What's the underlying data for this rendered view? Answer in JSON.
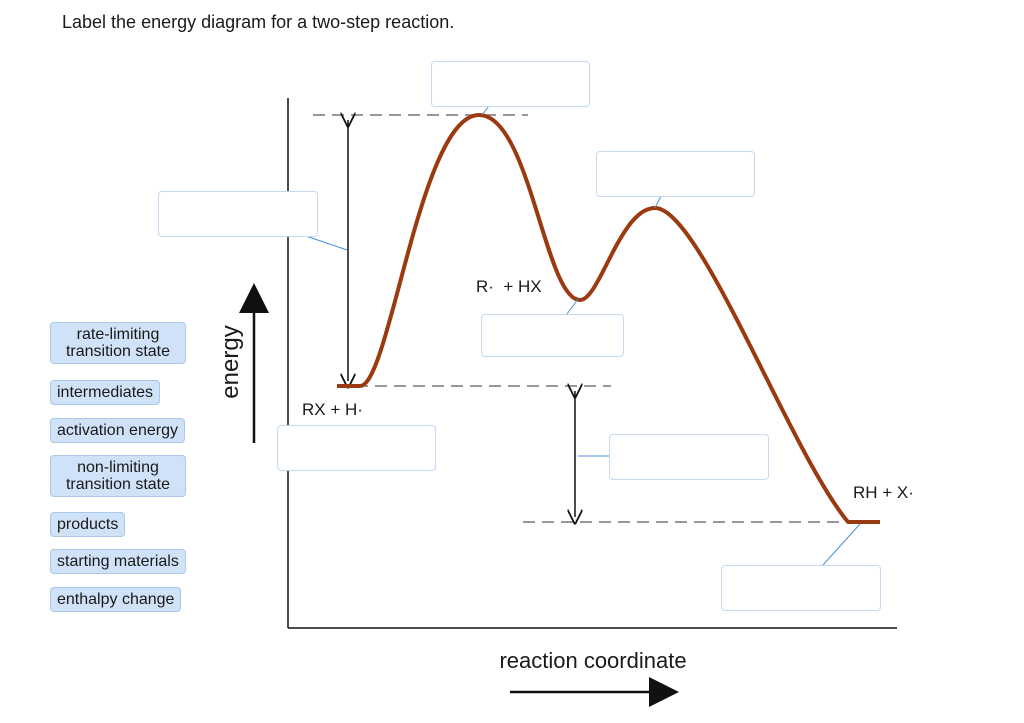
{
  "instruction": "Label the energy diagram for a two-step reaction.",
  "label_bank": [
    "rate-limiting\ntransition state",
    "intermediates",
    "activation energy",
    "non-limiting\ntransition state",
    "products",
    "starting materials",
    "enthalpy change"
  ],
  "diagram": {
    "y_axis_label": "energy",
    "x_axis_label": "reaction coordinate",
    "species": {
      "reactants": "RX + H·",
      "intermediate": "R·  + HX",
      "products": "RH + X·"
    }
  },
  "drop_targets": [
    {
      "id": "top-transition-state",
      "value": ""
    },
    {
      "id": "activation-energy-arrow",
      "value": ""
    },
    {
      "id": "second-transition-state",
      "value": ""
    },
    {
      "id": "intermediate-minimum",
      "value": ""
    },
    {
      "id": "starting-level",
      "value": ""
    },
    {
      "id": "enthalpy-arrow",
      "value": ""
    },
    {
      "id": "product-level",
      "value": ""
    }
  ],
  "colors": {
    "curve": "#9b3a10",
    "label_chip": "#cfe2f7",
    "dashed_line": "#777777",
    "leader_line": "#4a90d9"
  }
}
